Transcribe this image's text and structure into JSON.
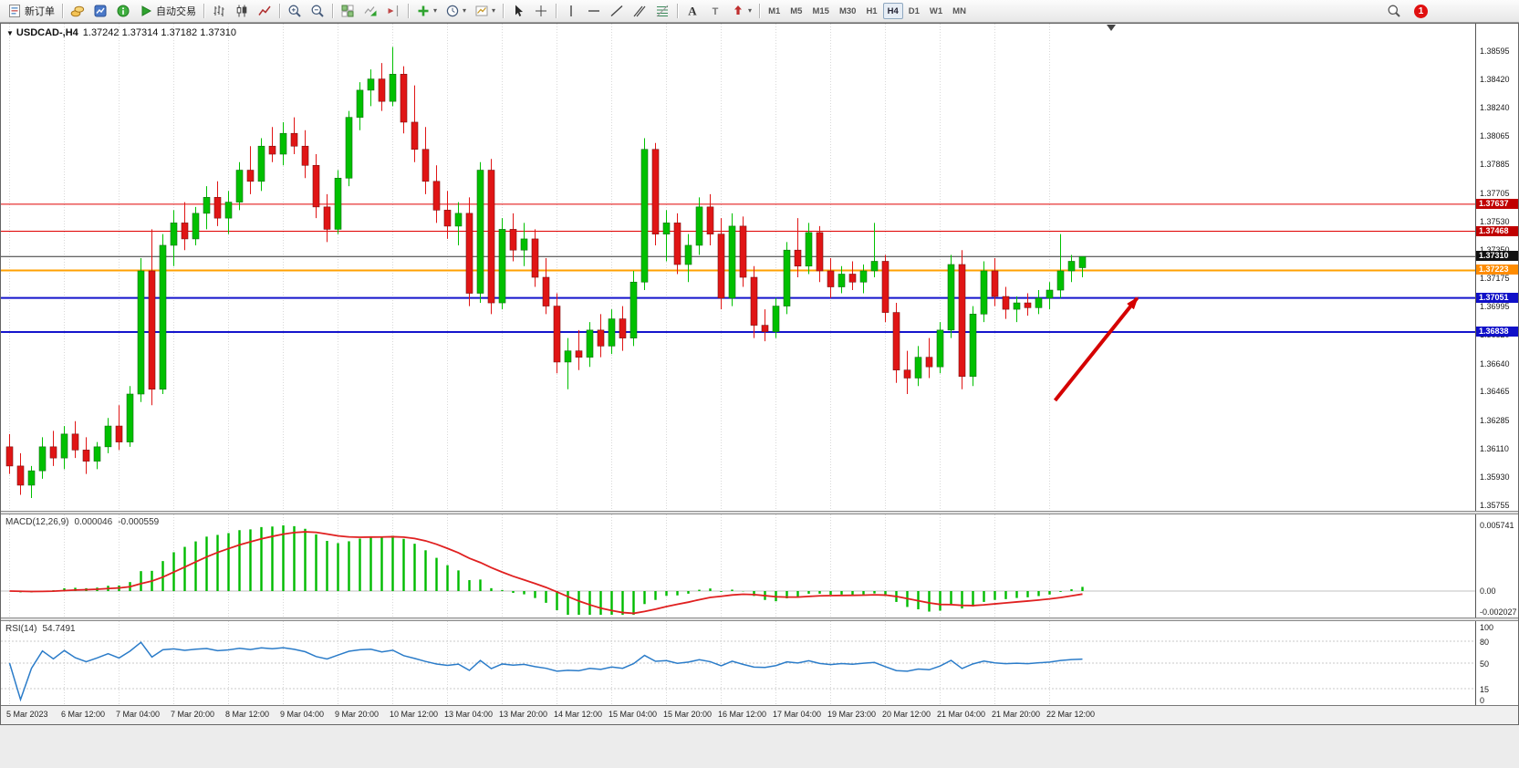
{
  "toolbar": {
    "items": [
      {
        "type": "button",
        "name": "new-order-button",
        "icon": "new-order-icon",
        "label": "新订单"
      },
      {
        "type": "sep"
      },
      {
        "type": "button",
        "name": "symbols-button",
        "icon": "coins-icon"
      },
      {
        "type": "button",
        "name": "profile-button",
        "icon": "profile-icon"
      },
      {
        "type": "button",
        "name": "community-button",
        "icon": "community-icon"
      },
      {
        "type": "button",
        "name": "auto-trading-button",
        "icon": "autotrade-icon",
        "label": "自动交易"
      },
      {
        "type": "sep"
      },
      {
        "type": "button",
        "name": "bar-chart-button",
        "icon": "bar-chart-icon"
      },
      {
        "type": "button",
        "name": "candlestick-chart-button",
        "icon": "candlestick-icon"
      },
      {
        "type": "button",
        "name": "line-chart-button",
        "icon": "line-chart-icon"
      },
      {
        "type": "sep"
      },
      {
        "type": "button",
        "name": "zoom-in-button",
        "icon": "zoom-in-icon"
      },
      {
        "type": "button",
        "name": "zoom-out-button",
        "icon": "zoom-out-icon"
      },
      {
        "type": "sep"
      },
      {
        "type": "button",
        "name": "tile-windows-button",
        "icon": "tile-windows-icon"
      },
      {
        "type": "button",
        "name": "auto-scroll-button",
        "icon": "auto-scroll-icon"
      },
      {
        "type": "button",
        "name": "chart-shift-button",
        "icon": "chart-shift-icon"
      },
      {
        "type": "sep"
      },
      {
        "type": "button",
        "name": "indicators-button",
        "icon": "indicators-icon",
        "caret": true
      },
      {
        "type": "button",
        "name": "periods-button",
        "icon": "periods-icon",
        "caret": true
      },
      {
        "type": "button",
        "name": "templates-button",
        "icon": "templates-icon",
        "caret": true
      },
      {
        "type": "sep"
      },
      {
        "type": "button",
        "name": "cursor-button",
        "icon": "cursor-icon"
      },
      {
        "type": "button",
        "name": "crosshair-button",
        "icon": "crosshair-icon"
      },
      {
        "type": "sep"
      },
      {
        "type": "button",
        "name": "vertical-line-button",
        "icon": "vline-icon"
      },
      {
        "type": "button",
        "name": "horizontal-line-button",
        "icon": "hline-icon"
      },
      {
        "type": "button",
        "name": "trendline-button",
        "icon": "trendline-icon"
      },
      {
        "type": "button",
        "name": "channel-button",
        "icon": "channel-icon"
      },
      {
        "type": "button",
        "name": "fibonacci-button",
        "icon": "fibonacci-icon"
      },
      {
        "type": "sep"
      },
      {
        "type": "button",
        "name": "text-button",
        "icon": "text-icon"
      },
      {
        "type": "button",
        "name": "label-button",
        "icon": "label-icon"
      },
      {
        "type": "button",
        "name": "arrows-button",
        "icon": "arrows-icon",
        "caret": true
      },
      {
        "type": "sep"
      }
    ],
    "timeframes": [
      "M1",
      "M5",
      "M15",
      "M30",
      "H1",
      "H4",
      "D1",
      "W1",
      "MN"
    ],
    "active_timeframe": "H4",
    "notification_count": "1"
  },
  "chart": {
    "symbol": "USDCAD-",
    "period": "H4",
    "open": "1.37242",
    "high": "1.37314",
    "low": "1.37182",
    "close": "1.37310",
    "title_symbol": "USDCAD-,H4",
    "title_ohlc": "1.37242 1.37314 1.37182 1.37310"
  },
  "indicators": {
    "macd": {
      "name": "MACD(12,26,9)",
      "value_main": "0.000046",
      "value_signal": "-0.000559",
      "scale_top": "0.005741",
      "scale_zero": "0.00",
      "scale_bottom": "-0.002027"
    },
    "rsi": {
      "name": "RSI(14)",
      "value": "54.7491",
      "levels": [
        "100",
        "80",
        "50",
        "15",
        "0"
      ]
    }
  },
  "chart_data": {
    "type": "candlestick",
    "title": "USDCAD-,H4",
    "symbol": "USDCAD-",
    "timeframe": "H4",
    "ylim": [
      1.3572,
      1.3872
    ],
    "up_color": "#00C000",
    "down_color": "#E01515",
    "y_ticks": [
      "1.38595",
      "1.38420",
      "1.38240",
      "1.38065",
      "1.37885",
      "1.37705",
      "1.37530",
      "1.37350",
      "1.37175",
      "1.36995",
      "1.36820",
      "1.36640",
      "1.36465",
      "1.36285",
      "1.36110",
      "1.35930",
      "1.35755"
    ],
    "x_labels": [
      "5 Mar 2023",
      "6 Mar 12:00",
      "7 Mar 04:00",
      "7 Mar 20:00",
      "8 Mar 12:00",
      "9 Mar 04:00",
      "9 Mar 20:00",
      "10 Mar 12:00",
      "13 Mar 04:00",
      "13 Mar 20:00",
      "14 Mar 12:00",
      "15 Mar 04:00",
      "15 Mar 20:00",
      "16 Mar 12:00",
      "17 Mar 04:00",
      "19 Mar 23:00",
      "20 Mar 12:00",
      "21 Mar 04:00",
      "21 Mar 20:00",
      "22 Mar 12:00"
    ],
    "horizontal_lines": [
      {
        "label": "1.37637",
        "price": 1.37637,
        "color": "#E00000",
        "badge": "#C00000",
        "width": 1
      },
      {
        "label": "1.37468",
        "price": 1.37468,
        "color": "#E00000",
        "badge": "#C00000",
        "width": 1
      },
      {
        "label": "1.37310",
        "price": 1.3731,
        "color": "#333333",
        "badge": "#111111",
        "width": 1
      },
      {
        "label": "1.37223",
        "price": 1.37223,
        "color": "#FFA000",
        "badge": "#FF8C00",
        "width": 2
      },
      {
        "label": "1.37051",
        "price": 1.37051,
        "color": "#1515CC",
        "badge": "#1010C8",
        "width": 2
      },
      {
        "label": "1.36838",
        "price": 1.36838,
        "color": "#1515CC",
        "badge": "#1010C8",
        "width": 2
      }
    ],
    "annotation_arrow": {
      "color": "#D50000",
      "from": {
        "bar": 95.5,
        "price": 1.3641
      },
      "to": {
        "bar": 103,
        "price": 1.3705
      }
    },
    "candles": [
      [
        1.3612,
        1.362,
        1.3595,
        1.36
      ],
      [
        1.36,
        1.3608,
        1.3582,
        1.3588
      ],
      [
        1.3588,
        1.36,
        1.358,
        1.3597
      ],
      [
        1.3597,
        1.3618,
        1.3592,
        1.3612
      ],
      [
        1.3612,
        1.3622,
        1.36,
        1.3605
      ],
      [
        1.3605,
        1.3625,
        1.3598,
        1.362
      ],
      [
        1.362,
        1.3628,
        1.3605,
        1.361
      ],
      [
        1.361,
        1.3618,
        1.3595,
        1.3603
      ],
      [
        1.3603,
        1.3615,
        1.3598,
        1.3612
      ],
      [
        1.3612,
        1.363,
        1.3608,
        1.3625
      ],
      [
        1.3625,
        1.3638,
        1.361,
        1.3615
      ],
      [
        1.3615,
        1.365,
        1.3612,
        1.3645
      ],
      [
        1.3645,
        1.373,
        1.364,
        1.3722
      ],
      [
        1.3722,
        1.3748,
        1.3638,
        1.3648
      ],
      [
        1.3648,
        1.3745,
        1.3645,
        1.3738
      ],
      [
        1.3738,
        1.376,
        1.3725,
        1.3752
      ],
      [
        1.3752,
        1.3765,
        1.3735,
        1.3742
      ],
      [
        1.3742,
        1.3762,
        1.3738,
        1.3758
      ],
      [
        1.3758,
        1.3775,
        1.3748,
        1.3768
      ],
      [
        1.3768,
        1.3778,
        1.375,
        1.3755
      ],
      [
        1.3755,
        1.3772,
        1.3745,
        1.3765
      ],
      [
        1.3765,
        1.379,
        1.376,
        1.3785
      ],
      [
        1.3785,
        1.38,
        1.377,
        1.3778
      ],
      [
        1.3778,
        1.3805,
        1.3772,
        1.38
      ],
      [
        1.38,
        1.3812,
        1.379,
        1.3795
      ],
      [
        1.3795,
        1.3815,
        1.3788,
        1.3808
      ],
      [
        1.3808,
        1.3818,
        1.3795,
        1.38
      ],
      [
        1.38,
        1.381,
        1.378,
        1.3788
      ],
      [
        1.3788,
        1.3795,
        1.3755,
        1.3762
      ],
      [
        1.3762,
        1.377,
        1.374,
        1.3748
      ],
      [
        1.3748,
        1.3785,
        1.3745,
        1.378
      ],
      [
        1.378,
        1.3822,
        1.3775,
        1.3818
      ],
      [
        1.3818,
        1.384,
        1.381,
        1.3835
      ],
      [
        1.3835,
        1.3848,
        1.3825,
        1.3842
      ],
      [
        1.3842,
        1.3852,
        1.3822,
        1.3828
      ],
      [
        1.3828,
        1.3862,
        1.3825,
        1.3845
      ],
      [
        1.3845,
        1.385,
        1.3808,
        1.3815
      ],
      [
        1.3815,
        1.3838,
        1.379,
        1.3798
      ],
      [
        1.3798,
        1.3812,
        1.377,
        1.3778
      ],
      [
        1.3778,
        1.3788,
        1.3752,
        1.376
      ],
      [
        1.376,
        1.3772,
        1.3742,
        1.375
      ],
      [
        1.375,
        1.3765,
        1.3738,
        1.3758
      ],
      [
        1.3758,
        1.3768,
        1.37,
        1.3708
      ],
      [
        1.3708,
        1.379,
        1.3702,
        1.3785
      ],
      [
        1.3785,
        1.3792,
        1.3695,
        1.3702
      ],
      [
        1.3702,
        1.3755,
        1.3698,
        1.3748
      ],
      [
        1.3748,
        1.3758,
        1.3728,
        1.3735
      ],
      [
        1.3735,
        1.3752,
        1.3725,
        1.3742
      ],
      [
        1.3742,
        1.3748,
        1.3712,
        1.3718
      ],
      [
        1.3718,
        1.373,
        1.3695,
        1.37
      ],
      [
        1.37,
        1.3708,
        1.3658,
        1.3665
      ],
      [
        1.3665,
        1.368,
        1.3648,
        1.3672
      ],
      [
        1.3672,
        1.3685,
        1.366,
        1.3668
      ],
      [
        1.3668,
        1.369,
        1.3662,
        1.3685
      ],
      [
        1.3685,
        1.3695,
        1.3668,
        1.3675
      ],
      [
        1.3675,
        1.3698,
        1.367,
        1.3692
      ],
      [
        1.3692,
        1.37,
        1.3672,
        1.368
      ],
      [
        1.368,
        1.3722,
        1.3675,
        1.3715
      ],
      [
        1.3715,
        1.3805,
        1.371,
        1.3798
      ],
      [
        1.3798,
        1.3802,
        1.3738,
        1.3745
      ],
      [
        1.3745,
        1.376,
        1.3728,
        1.3752
      ],
      [
        1.3752,
        1.3758,
        1.372,
        1.3726
      ],
      [
        1.3726,
        1.3745,
        1.3715,
        1.3738
      ],
      [
        1.3738,
        1.3768,
        1.3732,
        1.3762
      ],
      [
        1.3762,
        1.377,
        1.3738,
        1.3745
      ],
      [
        1.3745,
        1.3755,
        1.3698,
        1.3705
      ],
      [
        1.3705,
        1.3758,
        1.37,
        1.375
      ],
      [
        1.375,
        1.3756,
        1.3712,
        1.3718
      ],
      [
        1.3718,
        1.3725,
        1.368,
        1.3688
      ],
      [
        1.3688,
        1.3698,
        1.3678,
        1.3684
      ],
      [
        1.3684,
        1.3705,
        1.368,
        1.37
      ],
      [
        1.37,
        1.374,
        1.3695,
        1.3735
      ],
      [
        1.3735,
        1.3755,
        1.3718,
        1.3725
      ],
      [
        1.3725,
        1.3752,
        1.372,
        1.3746
      ],
      [
        1.3746,
        1.375,
        1.3715,
        1.3722
      ],
      [
        1.3722,
        1.373,
        1.3705,
        1.3712
      ],
      [
        1.3712,
        1.3725,
        1.3708,
        1.372
      ],
      [
        1.372,
        1.3728,
        1.371,
        1.3715
      ],
      [
        1.3715,
        1.3726,
        1.3708,
        1.3722
      ],
      [
        1.3722,
        1.3752,
        1.3718,
        1.3728
      ],
      [
        1.3728,
        1.3732,
        1.369,
        1.3696
      ],
      [
        1.3696,
        1.3702,
        1.3652,
        1.366
      ],
      [
        1.366,
        1.3672,
        1.3645,
        1.3655
      ],
      [
        1.3655,
        1.3675,
        1.365,
        1.3668
      ],
      [
        1.3668,
        1.368,
        1.3655,
        1.3662
      ],
      [
        1.3662,
        1.369,
        1.3658,
        1.3685
      ],
      [
        1.3685,
        1.3732,
        1.368,
        1.3726
      ],
      [
        1.3726,
        1.3735,
        1.3648,
        1.3656
      ],
      [
        1.3656,
        1.37,
        1.365,
        1.3695
      ],
      [
        1.3695,
        1.3728,
        1.369,
        1.3722
      ],
      [
        1.3722,
        1.373,
        1.37,
        1.3706
      ],
      [
        1.3706,
        1.3712,
        1.3692,
        1.3698
      ],
      [
        1.3698,
        1.3706,
        1.369,
        1.3702
      ],
      [
        1.3702,
        1.3708,
        1.3694,
        1.3699
      ],
      [
        1.3699,
        1.371,
        1.3695,
        1.3705
      ],
      [
        1.3705,
        1.3715,
        1.3698,
        1.371
      ],
      [
        1.371,
        1.3745,
        1.3705,
        1.3722
      ],
      [
        1.3722,
        1.3732,
        1.3715,
        1.3728
      ],
      [
        1.3724,
        1.3731,
        1.3718,
        1.3731
      ]
    ],
    "indicator_meta": [
      {
        "name": "MACD",
        "params": [
          12,
          26,
          9
        ],
        "values_shown": [
          "0.000046",
          "-0.000559"
        ],
        "scale_labels": [
          "0.005741",
          "0.00",
          "-0.002027"
        ]
      },
      {
        "name": "RSI",
        "params": [
          14
        ],
        "value_shown": "54.7491",
        "levels": [
          100,
          80,
          50,
          15,
          0
        ]
      }
    ]
  }
}
